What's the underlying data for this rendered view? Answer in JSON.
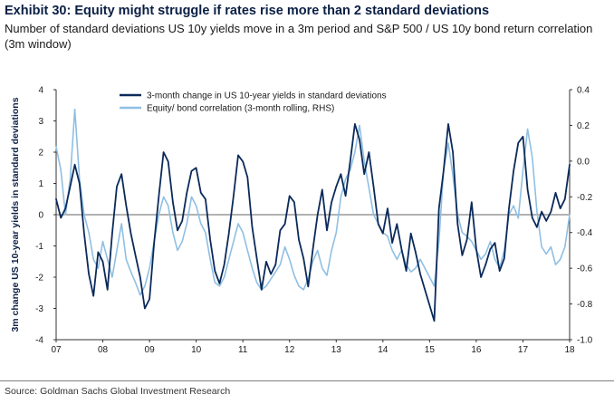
{
  "header": {
    "title": "Exhibit 30: Equity might struggle if rates rise more than 2 standard deviations",
    "subtitle": "Number of standard deviations US 10y yields move in a 3m period and S&P 500 / US 10y bond return correlation (3m window)"
  },
  "footer": {
    "source": "Source: Goldman Sachs Global Investment Research"
  },
  "colors": {
    "series_dark": "#0b2a5a",
    "series_light": "#8fbfe3",
    "axis": "#333333"
  },
  "chart_data": {
    "type": "line",
    "title": "Exhibit 30: Equity might struggle if rates rise more than 2 standard deviations",
    "xlabel": "",
    "ylabel": "3m change US 10-year yields in standard deviations",
    "ylabel_right": "",
    "xlim": [
      2007,
      2018
    ],
    "ylim": [
      -4,
      4
    ],
    "ylim_right": [
      -1.0,
      0.4
    ],
    "grid": false,
    "legend_position": "top-center",
    "x_tick_values": [
      2007,
      2008,
      2009,
      2010,
      2011,
      2012,
      2013,
      2014,
      2015,
      2016,
      2017,
      2018
    ],
    "x_tick_labels": [
      "07",
      "08",
      "09",
      "10",
      "11",
      "12",
      "13",
      "14",
      "15",
      "16",
      "17",
      "18"
    ],
    "y_ticks_left": [
      4,
      3,
      2,
      1,
      0,
      -1,
      -2,
      -3,
      -4
    ],
    "y_tick_labels_left": [
      "4",
      "3",
      "2",
      "1",
      "0",
      "-1",
      "-2",
      "-3",
      "-4"
    ],
    "y_ticks_right": [
      0.4,
      0.2,
      0.0,
      -0.2,
      -0.4,
      -0.6,
      -0.8,
      -1.0
    ],
    "y_tick_labels_right": [
      "0.4",
      "0.2",
      "0.0",
      "-0.2",
      "-0.4",
      "-0.6",
      "-0.8",
      "-1.0"
    ],
    "series": [
      {
        "name": "3-month change in US 10-year yields in standard deviations",
        "axis": "left",
        "x": [
          2007.0,
          2007.1,
          2007.2,
          2007.3,
          2007.4,
          2007.5,
          2007.6,
          2007.7,
          2007.8,
          2007.9,
          2008.0,
          2008.1,
          2008.2,
          2008.3,
          2008.4,
          2008.5,
          2008.6,
          2008.7,
          2008.8,
          2008.9,
          2009.0,
          2009.1,
          2009.2,
          2009.3,
          2009.4,
          2009.5,
          2009.6,
          2009.7,
          2009.8,
          2009.9,
          2010.0,
          2010.1,
          2010.2,
          2010.3,
          2010.4,
          2010.5,
          2010.6,
          2010.7,
          2010.8,
          2010.9,
          2011.0,
          2011.1,
          2011.2,
          2011.3,
          2011.4,
          2011.5,
          2011.6,
          2011.7,
          2011.8,
          2011.9,
          2012.0,
          2012.1,
          2012.2,
          2012.3,
          2012.4,
          2012.5,
          2012.6,
          2012.7,
          2012.8,
          2012.9,
          2013.0,
          2013.1,
          2013.2,
          2013.3,
          2013.4,
          2013.5,
          2013.6,
          2013.7,
          2013.8,
          2013.9,
          2014.0,
          2014.1,
          2014.2,
          2014.3,
          2014.4,
          2014.5,
          2014.6,
          2014.7,
          2014.8,
          2014.9,
          2015.0,
          2015.1,
          2015.2,
          2015.3,
          2015.4,
          2015.5,
          2015.6,
          2015.7,
          2015.8,
          2015.9,
          2016.0,
          2016.1,
          2016.2,
          2016.3,
          2016.4,
          2016.5,
          2016.6,
          2016.7,
          2016.8,
          2016.9,
          2017.0,
          2017.1,
          2017.2,
          2017.3,
          2017.4,
          2017.5,
          2017.6,
          2017.7,
          2017.8,
          2017.9,
          2018.0
        ],
        "values": [
          0.5,
          -0.1,
          0.2,
          0.9,
          1.6,
          1.0,
          -0.6,
          -1.9,
          -2.6,
          -1.2,
          -1.5,
          -2.4,
          -0.6,
          0.9,
          1.3,
          0.3,
          -0.6,
          -1.3,
          -2.0,
          -3.0,
          -2.7,
          -0.9,
          0.6,
          2.0,
          1.7,
          0.4,
          -0.5,
          -0.2,
          0.7,
          1.4,
          1.5,
          0.7,
          0.5,
          -0.8,
          -1.8,
          -2.2,
          -1.6,
          -0.6,
          0.6,
          1.9,
          1.7,
          1.2,
          -0.4,
          -1.4,
          -2.4,
          -1.5,
          -1.9,
          -1.6,
          -0.5,
          -0.3,
          0.6,
          0.4,
          -0.8,
          -1.4,
          -2.3,
          -1.1,
          0.0,
          0.8,
          -0.5,
          0.4,
          0.9,
          1.3,
          0.6,
          1.7,
          2.9,
          2.4,
          1.3,
          2.0,
          0.9,
          -0.3,
          -0.6,
          0.2,
          -0.9,
          -0.3,
          -1.1,
          -1.8,
          -0.6,
          -1.2,
          -1.9,
          -2.4,
          -2.9,
          -3.4,
          0.2,
          1.4,
          2.9,
          2.0,
          -0.3,
          -1.3,
          -0.8,
          0.4,
          -1.1,
          -2.0,
          -1.6,
          -1.1,
          -0.9,
          -1.8,
          -1.4,
          0.2,
          1.4,
          2.3,
          2.5,
          0.8,
          -0.1,
          -0.4,
          0.1,
          -0.2,
          0.1,
          0.7,
          0.2,
          0.5,
          1.6
        ]
      },
      {
        "name": "Equity/ bond correlation (3-month rolling, RHS)",
        "axis": "right",
        "x": [
          2007.0,
          2007.1,
          2007.2,
          2007.3,
          2007.4,
          2007.5,
          2007.6,
          2007.7,
          2007.8,
          2007.9,
          2008.0,
          2008.1,
          2008.2,
          2008.3,
          2008.4,
          2008.5,
          2008.6,
          2008.7,
          2008.8,
          2008.9,
          2009.0,
          2009.1,
          2009.2,
          2009.3,
          2009.4,
          2009.5,
          2009.6,
          2009.7,
          2009.8,
          2009.9,
          2010.0,
          2010.1,
          2010.2,
          2010.3,
          2010.4,
          2010.5,
          2010.6,
          2010.7,
          2010.8,
          2010.9,
          2011.0,
          2011.1,
          2011.2,
          2011.3,
          2011.4,
          2011.5,
          2011.6,
          2011.7,
          2011.8,
          2011.9,
          2012.0,
          2012.1,
          2012.2,
          2012.3,
          2012.4,
          2012.5,
          2012.6,
          2012.7,
          2012.8,
          2012.9,
          2013.0,
          2013.1,
          2013.2,
          2013.3,
          2013.4,
          2013.5,
          2013.6,
          2013.7,
          2013.8,
          2013.9,
          2014.0,
          2014.1,
          2014.2,
          2014.3,
          2014.4,
          2014.5,
          2014.6,
          2014.7,
          2014.8,
          2014.9,
          2015.0,
          2015.1,
          2015.2,
          2015.3,
          2015.4,
          2015.5,
          2015.6,
          2015.7,
          2015.8,
          2015.9,
          2016.0,
          2016.1,
          2016.2,
          2016.3,
          2016.4,
          2016.5,
          2016.6,
          2016.7,
          2016.8,
          2016.9,
          2017.0,
          2017.1,
          2017.2,
          2017.3,
          2017.4,
          2017.5,
          2017.6,
          2017.7,
          2017.8,
          2017.9,
          2018.0
        ],
        "values": [
          0.08,
          -0.05,
          -0.3,
          -0.1,
          0.29,
          -0.1,
          -0.3,
          -0.4,
          -0.55,
          -0.6,
          -0.45,
          -0.55,
          -0.65,
          -0.5,
          -0.35,
          -0.55,
          -0.62,
          -0.68,
          -0.75,
          -0.7,
          -0.6,
          -0.45,
          -0.3,
          -0.2,
          -0.25,
          -0.4,
          -0.5,
          -0.45,
          -0.35,
          -0.2,
          -0.25,
          -0.35,
          -0.4,
          -0.55,
          -0.68,
          -0.7,
          -0.65,
          -0.55,
          -0.45,
          -0.35,
          -0.4,
          -0.5,
          -0.6,
          -0.68,
          -0.72,
          -0.7,
          -0.66,
          -0.62,
          -0.58,
          -0.48,
          -0.55,
          -0.64,
          -0.7,
          -0.72,
          -0.66,
          -0.56,
          -0.5,
          -0.6,
          -0.64,
          -0.5,
          -0.4,
          -0.2,
          -0.1,
          -0.05,
          0.05,
          0.2,
          0.0,
          -0.15,
          -0.3,
          -0.35,
          -0.4,
          -0.42,
          -0.5,
          -0.55,
          -0.5,
          -0.58,
          -0.62,
          -0.6,
          -0.55,
          -0.6,
          -0.65,
          -0.7,
          -0.45,
          -0.05,
          0.1,
          -0.08,
          -0.3,
          -0.4,
          -0.42,
          -0.45,
          -0.5,
          -0.55,
          -0.52,
          -0.45,
          -0.55,
          -0.6,
          -0.5,
          -0.3,
          -0.25,
          -0.32,
          -0.05,
          0.18,
          0.02,
          -0.28,
          -0.48,
          -0.52,
          -0.48,
          -0.58,
          -0.55,
          -0.48,
          -0.3
        ]
      }
    ]
  }
}
